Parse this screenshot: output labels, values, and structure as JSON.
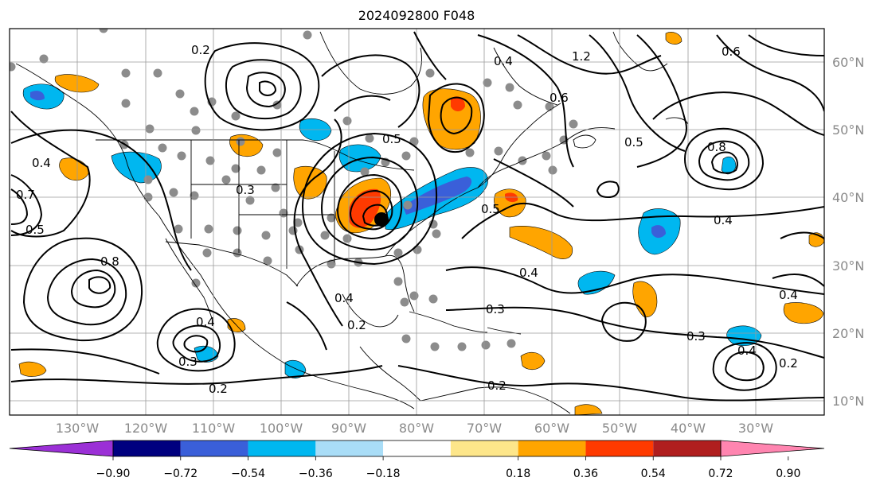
{
  "title": "2024092800 F048",
  "map": {
    "lat_labels": [
      "60°N",
      "50°N",
      "40°N",
      "30°N",
      "20°N",
      "10°N"
    ],
    "lon_labels": [
      "130°W",
      "120°W",
      "110°W",
      "100°W",
      "90°W",
      "80°W",
      "70°W",
      "60°W",
      "50°W",
      "40°W",
      "30°W"
    ],
    "contour_labels": [
      {
        "id": "c1",
        "text": "0.2"
      },
      {
        "id": "c2",
        "text": "0.4"
      },
      {
        "id": "c3",
        "text": "0.8"
      },
      {
        "id": "c4",
        "text": "0.7"
      },
      {
        "id": "c5",
        "text": "0.5"
      },
      {
        "id": "c6",
        "text": "0.4"
      },
      {
        "id": "c7",
        "text": "0.3"
      },
      {
        "id": "c8",
        "text": "0.2"
      },
      {
        "id": "c9",
        "text": "0.4"
      },
      {
        "id": "c10",
        "text": "0.3"
      },
      {
        "id": "c11",
        "text": "0.2"
      },
      {
        "id": "c12",
        "text": "0.4"
      },
      {
        "id": "c13",
        "text": "0.5"
      },
      {
        "id": "c14",
        "text": "0.6"
      },
      {
        "id": "c15",
        "text": "0.8"
      },
      {
        "id": "c16",
        "text": "0.4"
      },
      {
        "id": "c17",
        "text": "0.3"
      },
      {
        "id": "c18",
        "text": "0.3"
      },
      {
        "id": "c19",
        "text": "0.4"
      },
      {
        "id": "c20",
        "text": "0.6"
      },
      {
        "id": "c21",
        "text": "1.2"
      },
      {
        "id": "c22",
        "text": "0.5"
      },
      {
        "id": "c23",
        "text": "0.2"
      },
      {
        "id": "c24",
        "text": "0.5"
      },
      {
        "id": "c25",
        "text": "0.4"
      },
      {
        "id": "c26",
        "text": "0.4"
      },
      {
        "id": "c27",
        "text": "0.2"
      }
    ]
  },
  "colorbar": {
    "ticks": [
      "−0.90",
      "−0.72",
      "−0.54",
      "−0.36",
      "−0.18",
      "0.18",
      "0.36",
      "0.54",
      "0.72",
      "0.90"
    ],
    "colors": [
      "#9b30d6",
      "#00007f",
      "#3a5fd9",
      "#00b7f0",
      "#a9ddf7",
      "#ffffff",
      "#fde68a",
      "#ffa500",
      "#ff3a00",
      "#b01e1e",
      "#ff85b0"
    ]
  }
}
